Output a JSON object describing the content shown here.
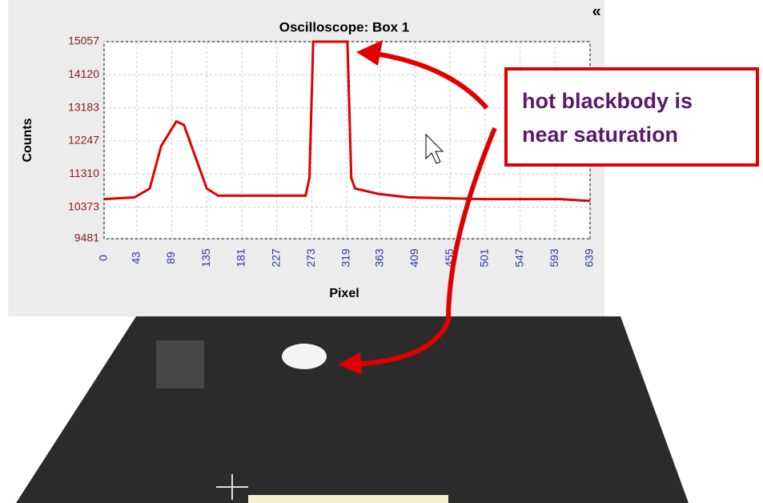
{
  "chart_data": {
    "type": "line",
    "title": "Oscilloscope: Box 1",
    "x_label": "Pixel",
    "y_label": "Counts",
    "x": [
      0,
      40,
      60,
      75,
      95,
      105,
      120,
      135,
      150,
      265,
      270,
      275,
      320,
      325,
      330,
      360,
      400,
      500,
      600,
      639
    ],
    "values": [
      10600,
      10650,
      10900,
      12100,
      12800,
      12700,
      11800,
      10900,
      10700,
      10700,
      11200,
      15057,
      15057,
      11200,
      10900,
      10750,
      10650,
      10600,
      10600,
      10550
    ],
    "color": "#e00000",
    "xlim": [
      0,
      639
    ],
    "xticks": [
      0,
      43,
      89,
      135,
      181,
      227,
      273,
      319,
      363,
      409,
      455,
      501,
      547,
      593,
      639
    ],
    "ylim": [
      9481,
      15057
    ],
    "yticks": [
      9481,
      10373,
      11310,
      12247,
      13183,
      14120,
      15057
    ],
    "grid": true
  },
  "annotation": {
    "lines": [
      "hot blackbody is",
      "near saturation"
    ]
  },
  "ui": {
    "collapse_icon": "«"
  }
}
